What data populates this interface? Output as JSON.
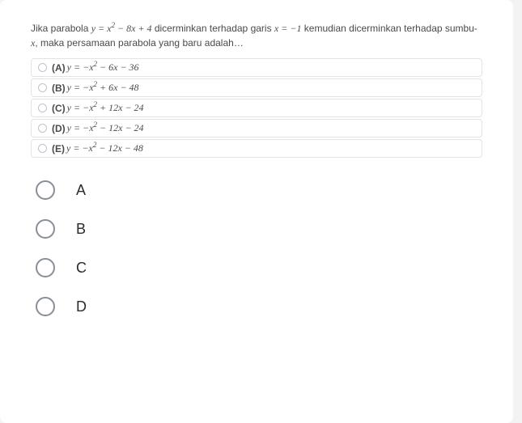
{
  "colors": {
    "page_bg": "#f3f3f3",
    "card_bg": "#ffffff",
    "text": "#4a4a4a",
    "border": "#e3e3e3",
    "bubble_border": "#bfc3cc",
    "big_bubble_border": "#8a8e97"
  },
  "question": {
    "pre1": "Jika parabola ",
    "eq1": "y = x",
    "eq1_sup": "2",
    "eq1_tail": " − 8x + 4",
    "mid1": " dicerminkan terhadap garis ",
    "eq2": "x = −1",
    "mid2": " kemudian dicerminkan terhadap sumbu-",
    "axis": "x",
    "tail": ", maka persamaan parabola yang baru adalah…"
  },
  "options": [
    {
      "tag": "(A)",
      "lhs": "y = −x",
      "sup": "2",
      "rhs": " − 6x − 36"
    },
    {
      "tag": "(B)",
      "lhs": "y = −x",
      "sup": "2",
      "rhs": " + 6x − 48"
    },
    {
      "tag": "(C)",
      "lhs": "y = −x",
      "sup": "2",
      "rhs": " + 12x − 24"
    },
    {
      "tag": "(D)",
      "lhs": "y = −x",
      "sup": "2",
      "rhs": " − 12x − 24"
    },
    {
      "tag": "(E)",
      "lhs": "y = −x",
      "sup": "2",
      "rhs": " − 12x − 48"
    }
  ],
  "answers": [
    {
      "letter": "A"
    },
    {
      "letter": "B"
    },
    {
      "letter": "C"
    },
    {
      "letter": "D"
    }
  ]
}
